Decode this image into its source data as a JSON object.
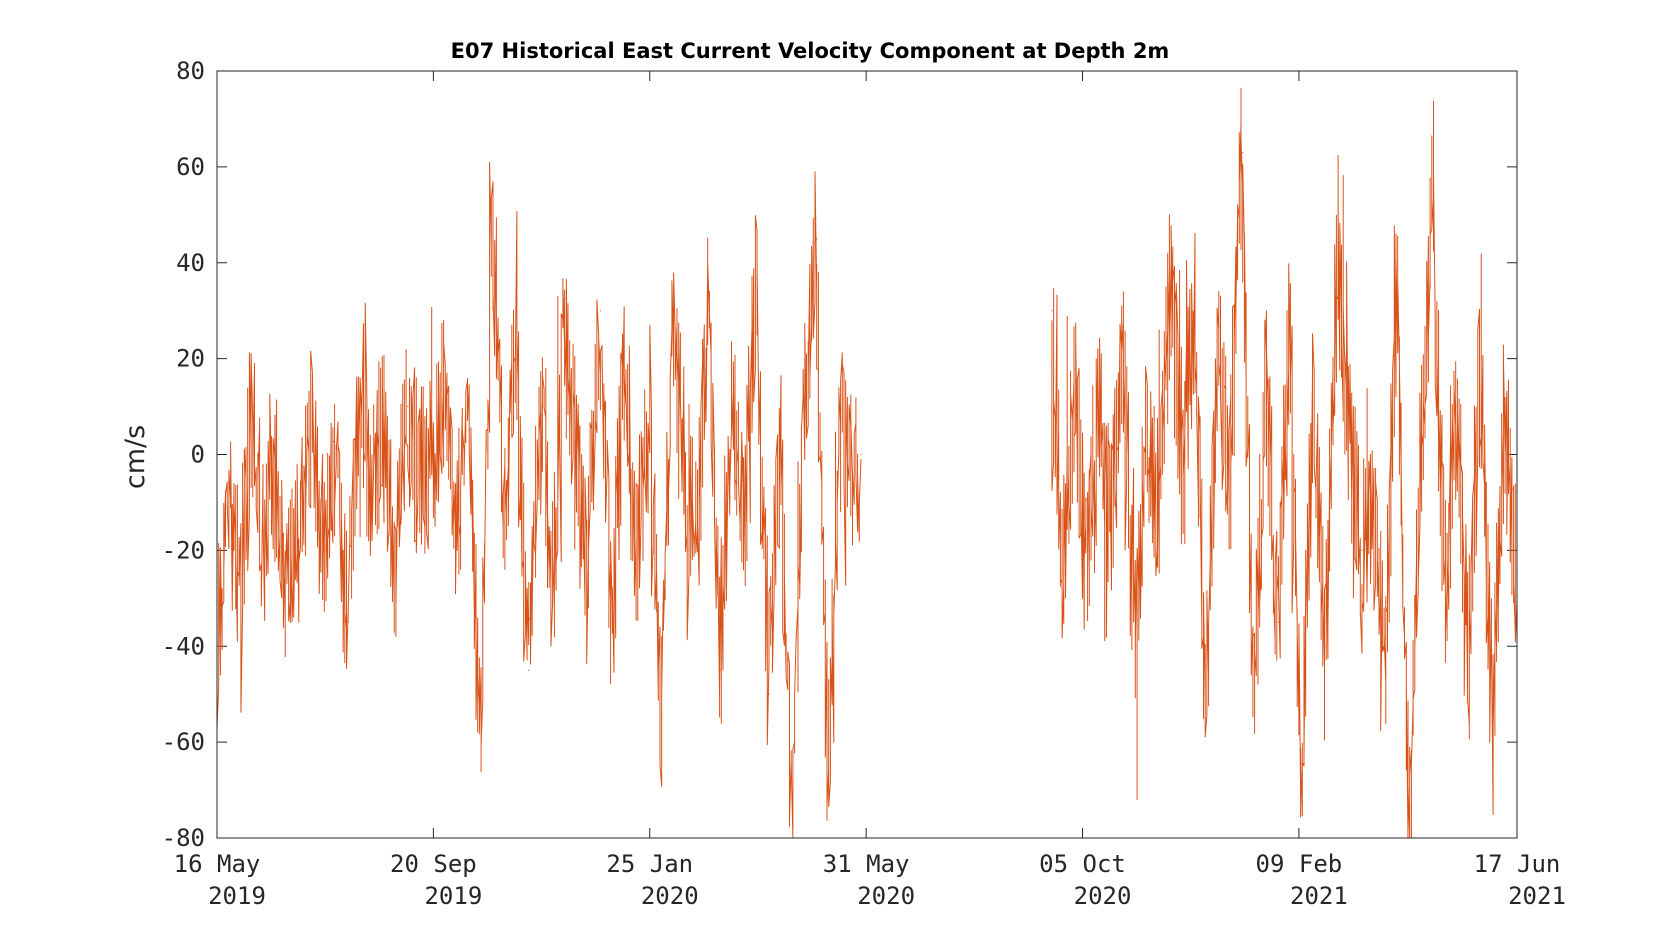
{
  "chart_data": {
    "type": "line",
    "title": "E07 Historical East Current Velocity Component at Depth 2m",
    "xlabel": "",
    "ylabel": "cm/s",
    "xlim": [
      "2019-05-16",
      "2021-06-17"
    ],
    "ylim": [
      -80,
      80
    ],
    "grid": false,
    "legend": "none",
    "x_ticks": [
      {
        "date": "2019-05-16",
        "line1": "16 May",
        "line2": "2019"
      },
      {
        "date": "2019-09-20",
        "line1": "20 Sep",
        "line2": "2019"
      },
      {
        "date": "2020-01-25",
        "line1": "25 Jan",
        "line2": "2020"
      },
      {
        "date": "2020-05-31",
        "line1": "31 May",
        "line2": "2020"
      },
      {
        "date": "2020-10-05",
        "line1": "05 Oct",
        "line2": "2020"
      },
      {
        "date": "2021-02-09",
        "line1": "09 Feb",
        "line2": "2021"
      },
      {
        "date": "2021-06-17",
        "line1": "17 Jun",
        "line2": "2021"
      }
    ],
    "y_ticks": [
      80,
      60,
      40,
      20,
      0,
      -20,
      -40,
      -60,
      -80
    ],
    "colors": {
      "primary": "#D95319",
      "secondary": "#4A6A8A"
    },
    "series": [
      {
        "color": "#D95319",
        "segments": [
          {
            "x": [
              "2019-05-16",
              "2019-05-23",
              "2019-05-30",
              "2019-06-06",
              "2019-06-13",
              "2019-06-20",
              "2019-06-27",
              "2019-07-04",
              "2019-07-11",
              "2019-07-18",
              "2019-07-25",
              "2019-08-01",
              "2019-08-08",
              "2019-08-15",
              "2019-08-22",
              "2019-08-29",
              "2019-09-05",
              "2019-09-12",
              "2019-09-20",
              "2019-09-27",
              "2019-10-04",
              "2019-10-11",
              "2019-10-18",
              "2019-10-25",
              "2019-11-01",
              "2019-11-08",
              "2019-11-15",
              "2019-11-22",
              "2019-11-29",
              "2019-12-06",
              "2019-12-13",
              "2019-12-20",
              "2019-12-27",
              "2020-01-03",
              "2020-01-10",
              "2020-01-17",
              "2020-01-25",
              "2020-02-01",
              "2020-02-08",
              "2020-02-15",
              "2020-02-22",
              "2020-02-29",
              "2020-03-07",
              "2020-03-14",
              "2020-03-21",
              "2020-03-28",
              "2020-04-04",
              "2020-04-11",
              "2020-04-18",
              "2020-04-25",
              "2020-05-02",
              "2020-05-09",
              "2020-05-16",
              "2020-05-23",
              "2020-05-28"
            ],
            "y": [
              -45,
              -10,
              -25,
              10,
              -20,
              -5,
              -30,
              -15,
              5,
              -20,
              0,
              -35,
              15,
              -10,
              5,
              -25,
              10,
              -5,
              0,
              15,
              -15,
              5,
              -60,
              52,
              -10,
              20,
              -45,
              10,
              -30,
              25,
              0,
              -25,
              30,
              -35,
              15,
              -20,
              5,
              -55,
              25,
              0,
              -20,
              30,
              -45,
              10,
              -15,
              35,
              -50,
              0,
              -77,
              10,
              45,
              -65,
              5,
              -5,
              0
            ]
          }
        ]
      },
      {
        "color": "#D95319",
        "segments": [
          {
            "x": [
              "2020-09-17",
              "2020-09-24",
              "2020-10-01",
              "2020-10-08",
              "2020-10-15",
              "2020-10-22",
              "2020-10-29",
              "2020-11-05",
              "2020-11-12",
              "2020-11-19",
              "2020-11-26",
              "2020-12-03",
              "2020-12-10",
              "2020-12-17",
              "2020-12-24",
              "2020-12-31",
              "2021-01-07",
              "2021-01-14",
              "2021-01-21",
              "2021-01-28",
              "2021-02-04",
              "2021-02-11",
              "2021-02-18",
              "2021-02-25",
              "2021-03-04",
              "2021-03-11",
              "2021-03-18",
              "2021-03-25",
              "2021-04-01",
              "2021-04-08",
              "2021-04-15",
              "2021-04-22",
              "2021-04-29",
              "2021-05-06",
              "2021-05-13",
              "2021-05-20",
              "2021-05-27",
              "2021-06-03",
              "2021-06-10",
              "2021-06-17"
            ],
            "y": [
              30,
              -25,
              15,
              -20,
              10,
              -15,
              25,
              -40,
              5,
              -10,
              35,
              0,
              30,
              -48,
              20,
              -5,
              63,
              -54,
              15,
              -35,
              25,
              -67,
              10,
              -40,
              40,
              5,
              -20,
              -10,
              -45,
              35,
              -80,
              0,
              52,
              -30,
              10,
              -40,
              20,
              -56,
              10,
              -25
            ]
          }
        ]
      }
    ],
    "annotations": []
  }
}
